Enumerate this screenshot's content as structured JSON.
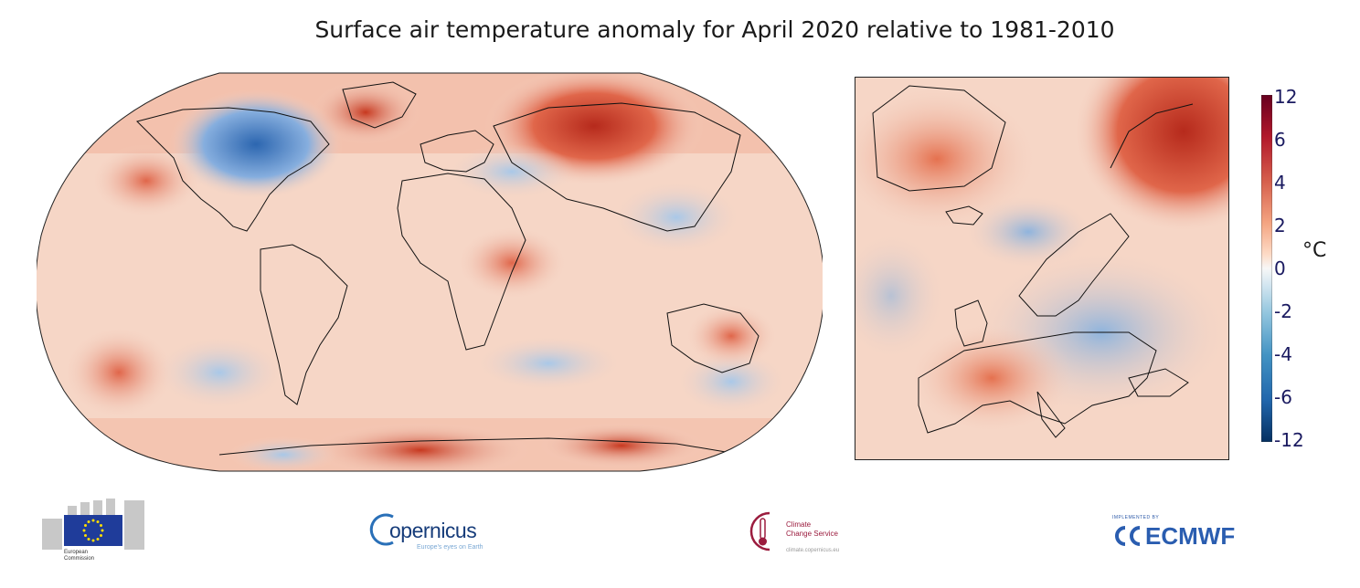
{
  "title": "Surface air temperature anomaly for April 2020 relative to 1981-2010",
  "maps": {
    "world": {
      "projection": "robinson",
      "region": "global"
    },
    "europe": {
      "region": "europe-north-atlantic"
    }
  },
  "colorbar": {
    "ticks": [
      "12",
      "6",
      "4",
      "2",
      "0",
      "-2",
      "-4",
      "-6",
      "-12"
    ],
    "unit": "°C",
    "colors": [
      "#053061",
      "#2166ac",
      "#4393c3",
      "#92c5de",
      "#d1e5f0",
      "#f7f7f7",
      "#fddbc7",
      "#f4a582",
      "#d6604d",
      "#b2182b",
      "#67001f"
    ]
  },
  "logos": {
    "eu": {
      "line1": "European",
      "line2": "Commission"
    },
    "copernicus": {
      "name": "opernicus",
      "tagline": "Europe's eyes on Earth"
    },
    "c3s": {
      "line1": "Climate",
      "line2": "Change Service",
      "url": "climate.copernicus.eu"
    },
    "ecmwf": {
      "name": "ECMWF",
      "small": "IMPLEMENTED BY"
    }
  }
}
